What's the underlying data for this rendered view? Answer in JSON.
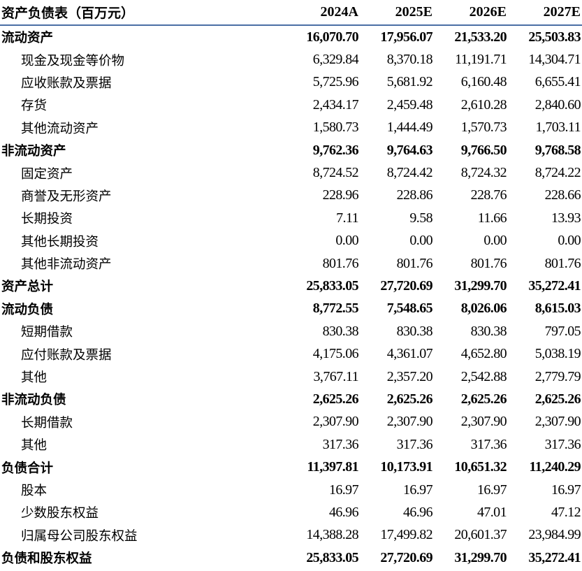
{
  "table": {
    "headers": [
      "资产负债表（百万元）",
      "2024A",
      "2025E",
      "2026E",
      "2027E"
    ],
    "rows": [
      {
        "label": "流动资产",
        "bold": true,
        "values": [
          "16,070.70",
          "17,956.07",
          "21,533.20",
          "25,503.83"
        ]
      },
      {
        "label": "现金及现金等价物",
        "bold": false,
        "values": [
          "6,329.84",
          "8,370.18",
          "11,191.71",
          "14,304.71"
        ]
      },
      {
        "label": "应收账款及票据",
        "bold": false,
        "values": [
          "5,725.96",
          "5,681.92",
          "6,160.48",
          "6,655.41"
        ]
      },
      {
        "label": "存货",
        "bold": false,
        "values": [
          "2,434.17",
          "2,459.48",
          "2,610.28",
          "2,840.60"
        ]
      },
      {
        "label": "其他流动资产",
        "bold": false,
        "values": [
          "1,580.73",
          "1,444.49",
          "1,570.73",
          "1,703.11"
        ]
      },
      {
        "label": "非流动资产",
        "bold": true,
        "values": [
          "9,762.36",
          "9,764.63",
          "9,766.50",
          "9,768.58"
        ]
      },
      {
        "label": "固定资产",
        "bold": false,
        "values": [
          "8,724.52",
          "8,724.42",
          "8,724.32",
          "8,724.22"
        ]
      },
      {
        "label": "商誉及无形资产",
        "bold": false,
        "values": [
          "228.96",
          "228.86",
          "228.76",
          "228.66"
        ]
      },
      {
        "label": "长期投资",
        "bold": false,
        "values": [
          "7.11",
          "9.58",
          "11.66",
          "13.93"
        ]
      },
      {
        "label": "其他长期投资",
        "bold": false,
        "values": [
          "0.00",
          "0.00",
          "0.00",
          "0.00"
        ]
      },
      {
        "label": "其他非流动资产",
        "bold": false,
        "values": [
          "801.76",
          "801.76",
          "801.76",
          "801.76"
        ]
      },
      {
        "label": "资产总计",
        "bold": true,
        "values": [
          "25,833.05",
          "27,720.69",
          "31,299.70",
          "35,272.41"
        ]
      },
      {
        "label": "流动负债",
        "bold": true,
        "values": [
          "8,772.55",
          "7,548.65",
          "8,026.06",
          "8,615.03"
        ]
      },
      {
        "label": "短期借款",
        "bold": false,
        "values": [
          "830.38",
          "830.38",
          "830.38",
          "797.05"
        ]
      },
      {
        "label": "应付账款及票据",
        "bold": false,
        "values": [
          "4,175.06",
          "4,361.07",
          "4,652.80",
          "5,038.19"
        ]
      },
      {
        "label": "其他",
        "bold": false,
        "values": [
          "3,767.11",
          "2,357.20",
          "2,542.88",
          "2,779.79"
        ]
      },
      {
        "label": "非流动负债",
        "bold": true,
        "values": [
          "2,625.26",
          "2,625.26",
          "2,625.26",
          "2,625.26"
        ]
      },
      {
        "label": "长期借款",
        "bold": false,
        "values": [
          "2,307.90",
          "2,307.90",
          "2,307.90",
          "2,307.90"
        ]
      },
      {
        "label": "其他",
        "bold": false,
        "values": [
          "317.36",
          "317.36",
          "317.36",
          "317.36"
        ]
      },
      {
        "label": "负债合计",
        "bold": true,
        "values": [
          "11,397.81",
          "10,173.91",
          "10,651.32",
          "11,240.29"
        ]
      },
      {
        "label": "股本",
        "bold": false,
        "values": [
          "16.97",
          "16.97",
          "16.97",
          "16.97"
        ]
      },
      {
        "label": "少数股东权益",
        "bold": false,
        "values": [
          "46.96",
          "46.96",
          "47.01",
          "47.12"
        ]
      },
      {
        "label": "归属母公司股东权益",
        "bold": false,
        "values": [
          "14,388.28",
          "17,499.82",
          "20,601.37",
          "23,984.99"
        ]
      },
      {
        "label": "负债和股东权益",
        "bold": true,
        "values": [
          "25,833.05",
          "27,720.69",
          "31,299.70",
          "35,272.41"
        ]
      }
    ]
  },
  "colors": {
    "header_rule": "#4a6fa5",
    "text": "#000000"
  }
}
